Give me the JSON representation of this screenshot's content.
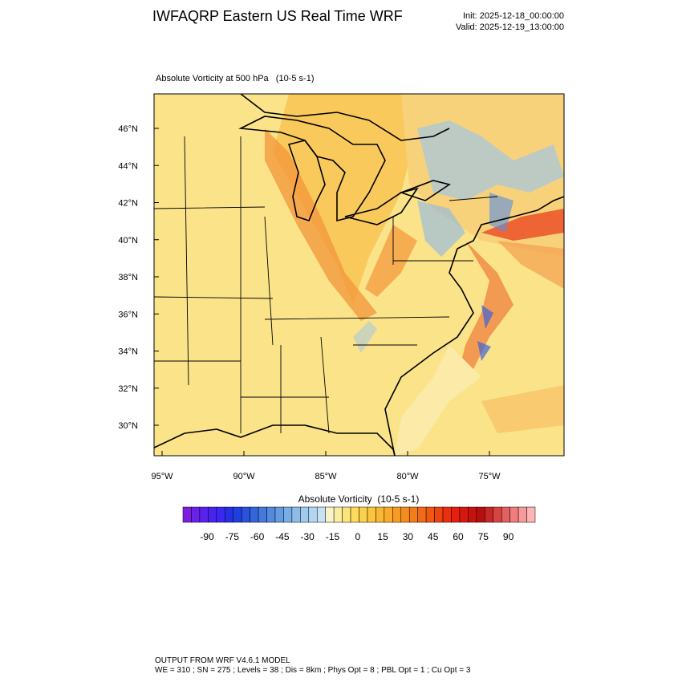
{
  "header": {
    "title": "IWFAQRP Eastern US Real Time WRF",
    "init": "Init: 2025-12-18_00:00:00",
    "valid": "Valid: 2025-12-19_13:00:00"
  },
  "map": {
    "subtitle": "Absolute Vorticity at 500 hPa   (10-5 s-1)",
    "lat_labels": [
      "46°N",
      "44°N",
      "42°N",
      "40°N",
      "38°N",
      "36°N",
      "34°N",
      "32°N",
      "30°N"
    ],
    "lon_labels": [
      "95°W",
      "90°W",
      "85°W",
      "80°W",
      "75°W"
    ]
  },
  "colorbar": {
    "title": "Absolute Vorticity  (10-5 s-1)",
    "labels": [
      -90,
      -75,
      -60,
      -45,
      -30,
      -15,
      0,
      15,
      30,
      45,
      60,
      75,
      90
    ],
    "colors": [
      "#7a1fe0",
      "#6a22e8",
      "#5a22ee",
      "#4a22f0",
      "#3a28f0",
      "#2430e8",
      "#1e40e0",
      "#2a52dc",
      "#3565da",
      "#4478dc",
      "#538ade",
      "#649ce2",
      "#78ade6",
      "#8cbcea",
      "#a0caee",
      "#b4d6f0",
      "#c8e2f4",
      "#fbf3c8",
      "#fbeda0",
      "#fde47a",
      "#fdda5c",
      "#fcd04a",
      "#fbc53e",
      "#fab834",
      "#f9aa2c",
      "#f89b24",
      "#f68c1e",
      "#f47c1a",
      "#f26a16",
      "#f05812",
      "#ee4410",
      "#ec300e",
      "#e81e0e",
      "#d8180e",
      "#c8120e",
      "#b80e0e",
      "#c82828",
      "#d84444",
      "#e46060",
      "#f07c7c",
      "#f89a9a",
      "#fcb4b4"
    ]
  },
  "footer": {
    "line1": "OUTPUT FROM WRF V4.6.1 MODEL",
    "line2": "WE = 310 ; SN = 275 ; Levels = 38 ; Dis = 8km ; Phys Opt = 8 ; PBL Opt = 1 ; Cu Opt = 3"
  }
}
